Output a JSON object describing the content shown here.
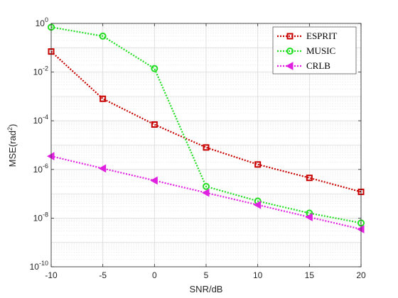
{
  "chart_data": {
    "type": "line",
    "xlabel": "SNR/dB",
    "ylabel_main": "MSE(rad",
    "ylabel_sup": "2",
    "ylabel_end": ")",
    "yscale": "log",
    "xlim": [
      -10,
      20
    ],
    "ylim": [
      1e-10,
      1
    ],
    "x": [
      -10,
      -5,
      0,
      5,
      10,
      15,
      20
    ],
    "xticks": [
      -10,
      -5,
      0,
      5,
      10,
      15,
      20
    ],
    "xtick_labels": [
      "-10",
      "-5",
      "0",
      "5",
      "10",
      "15",
      "20"
    ],
    "yticks": [
      {
        "value": 1,
        "base": "10",
        "exp": "0"
      },
      {
        "value": 0.01,
        "base": "10",
        "exp": "-2"
      },
      {
        "value": 0.0001,
        "base": "10",
        "exp": "-4"
      },
      {
        "value": 1e-06,
        "base": "10",
        "exp": "-6"
      },
      {
        "value": 1e-08,
        "base": "10",
        "exp": "-8"
      },
      {
        "value": 1e-10,
        "base": "10",
        "exp": "-10"
      }
    ],
    "grid": true,
    "legend_position": "top-right",
    "series": [
      {
        "name": "ESPRIT",
        "color": "#c80000",
        "marker": "square",
        "values": [
          0.07,
          0.0008,
          7e-05,
          8e-06,
          1.6e-06,
          4.5e-07,
          1.2e-07
        ]
      },
      {
        "name": "MUSIC",
        "color": "#22dd22",
        "marker": "circle",
        "values": [
          0.7,
          0.3,
          0.014,
          2e-07,
          5e-08,
          1.6e-08,
          6.3e-09
        ]
      },
      {
        "name": "CRLB",
        "color": "#e020e0",
        "marker": "triangle-left",
        "values": [
          3.5e-06,
          1.1e-06,
          3.5e-07,
          1.1e-07,
          3.5e-08,
          1.1e-08,
          3.5e-09
        ]
      }
    ]
  }
}
